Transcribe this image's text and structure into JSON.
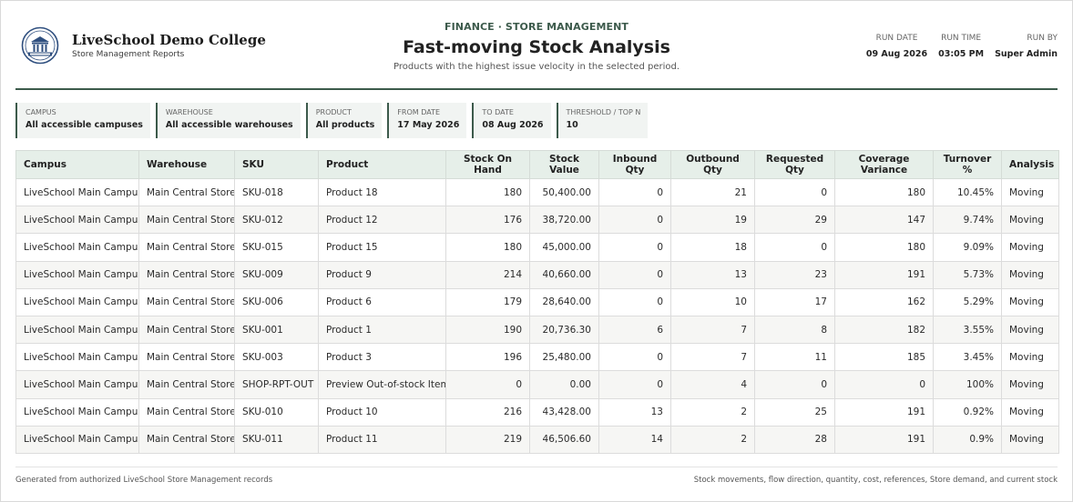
{
  "brand": {
    "name": "LiveSchool Demo College",
    "subtitle": "Store Management Reports"
  },
  "report": {
    "kicker": "FINANCE · STORE MANAGEMENT",
    "title": "Fast-moving Stock Analysis",
    "subtitle": "Products with the highest issue velocity in the selected period."
  },
  "run": {
    "date_label": "RUN DATE",
    "date": "09 Aug 2026",
    "time_label": "RUN TIME",
    "time": "03:05 PM",
    "by_label": "RUN BY",
    "by": "Super Admin"
  },
  "filters": [
    {
      "label": "CAMPUS",
      "value": "All accessible campuses"
    },
    {
      "label": "WAREHOUSE",
      "value": "All accessible warehouses"
    },
    {
      "label": "PRODUCT",
      "value": "All products"
    },
    {
      "label": "FROM DATE",
      "value": "17 May 2026"
    },
    {
      "label": "TO DATE",
      "value": "08 Aug 2026"
    },
    {
      "label": "THRESHOLD / TOP N",
      "value": "10"
    }
  ],
  "table": {
    "columns": [
      "Campus",
      "Warehouse",
      "SKU",
      "Product",
      "Stock On Hand",
      "Stock Value",
      "Inbound Qty",
      "Outbound Qty",
      "Requested Qty",
      "Coverage Variance",
      "Turnover %",
      "Analysis"
    ],
    "rows": [
      [
        "LiveSchool Main Campus",
        "Main Central Store",
        "SKU-018",
        "Product 18",
        "180",
        "50,400.00",
        "0",
        "21",
        "0",
        "180",
        "10.45%",
        "Moving"
      ],
      [
        "LiveSchool Main Campus",
        "Main Central Store",
        "SKU-012",
        "Product 12",
        "176",
        "38,720.00",
        "0",
        "19",
        "29",
        "147",
        "9.74%",
        "Moving"
      ],
      [
        "LiveSchool Main Campus",
        "Main Central Store",
        "SKU-015",
        "Product 15",
        "180",
        "45,000.00",
        "0",
        "18",
        "0",
        "180",
        "9.09%",
        "Moving"
      ],
      [
        "LiveSchool Main Campus",
        "Main Central Store",
        "SKU-009",
        "Product 9",
        "214",
        "40,660.00",
        "0",
        "13",
        "23",
        "191",
        "5.73%",
        "Moving"
      ],
      [
        "LiveSchool Main Campus",
        "Main Central Store",
        "SKU-006",
        "Product 6",
        "179",
        "28,640.00",
        "0",
        "10",
        "17",
        "162",
        "5.29%",
        "Moving"
      ],
      [
        "LiveSchool Main Campus",
        "Main Central Store",
        "SKU-001",
        "Product 1",
        "190",
        "20,736.30",
        "6",
        "7",
        "8",
        "182",
        "3.55%",
        "Moving"
      ],
      [
        "LiveSchool Main Campus",
        "Main Central Store",
        "SKU-003",
        "Product 3",
        "196",
        "25,480.00",
        "0",
        "7",
        "11",
        "185",
        "3.45%",
        "Moving"
      ],
      [
        "LiveSchool Main Campus",
        "Main Central Store",
        "SHOP-RPT-OUT",
        "Preview Out-of-stock Item",
        "0",
        "0.00",
        "0",
        "4",
        "0",
        "0",
        "100%",
        "Moving"
      ],
      [
        "LiveSchool Main Campus",
        "Main Central Store",
        "SKU-010",
        "Product 10",
        "216",
        "43,428.00",
        "13",
        "2",
        "25",
        "191",
        "0.92%",
        "Moving"
      ],
      [
        "LiveSchool Main Campus",
        "Main Central Store",
        "SKU-011",
        "Product 11",
        "219",
        "46,506.60",
        "14",
        "2",
        "28",
        "191",
        "0.9%",
        "Moving"
      ]
    ]
  },
  "footer": {
    "left": "Generated from authorized LiveSchool Store Management records",
    "right": "Stock movements, flow direction, quantity, cost, references, Store demand, and current stock"
  },
  "colors": {
    "accent": "#3c5a4b",
    "header_bg": "#e6efe9",
    "filter_bg": "#f1f4f2"
  },
  "icons": {
    "logo": "college-crest-logo"
  }
}
